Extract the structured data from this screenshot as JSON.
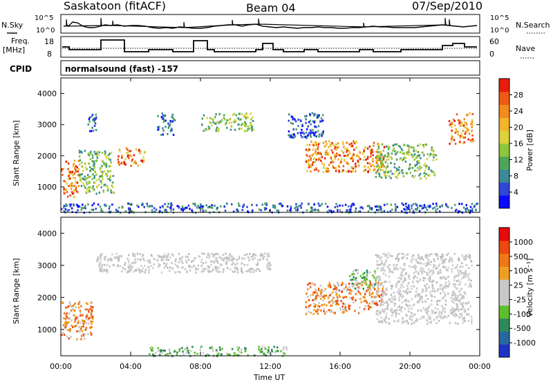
{
  "header": {
    "station": "Saskatoon (fitACF)",
    "beam": "Beam 04",
    "date": "07/Sep/2010"
  },
  "top_panels": {
    "nsky_label": "N.Sky",
    "nsky_ticks": [
      "10^5",
      "10^0"
    ],
    "nsearch_label": "N.Search",
    "nsearch_ticks": [
      "10^5",
      "10^0"
    ],
    "freq_label": "Freq.",
    "freq_unit": "[MHz]",
    "freq_ticks": [
      "18",
      "8"
    ],
    "nave_label": "Nave",
    "nave_ticks": [
      "60",
      "0"
    ],
    "cpid_label": "CPID",
    "cpid_value": "normalsound (fast) -157"
  },
  "chart_data": [
    {
      "type": "heatmap",
      "name": "power",
      "ylabel": "Slant Range [km]",
      "ylim": [
        180,
        4500
      ],
      "yticks": [
        "4000",
        "3000",
        "2000",
        "1000"
      ],
      "xlim": [
        "00:00",
        "24:00"
      ],
      "colorbar": {
        "label": "Power [dB]",
        "ticks": [
          "28",
          "24",
          "20",
          "16",
          "12",
          "8",
          "4"
        ],
        "colors": [
          "#0a0aff",
          "#2f47d6",
          "#3b8a96",
          "#4fa65a",
          "#8cc63c",
          "#dcd23c",
          "#f4b428",
          "#f28a1e",
          "#ee5a14",
          "#e61e0a"
        ]
      },
      "echo_regions": [
        {
          "t_start": 0.0,
          "t_end": 1.0,
          "range_start": 700,
          "range_end": 1900,
          "level": "high"
        },
        {
          "t_start": 1.0,
          "t_end": 3.0,
          "range_start": 800,
          "range_end": 2200,
          "level": "medium"
        },
        {
          "t_start": 1.5,
          "t_end": 2.0,
          "range_start": 2800,
          "range_end": 3400,
          "level": "low"
        },
        {
          "t_start": 3.2,
          "t_end": 4.8,
          "range_start": 1700,
          "range_end": 2300,
          "level": "high"
        },
        {
          "t_start": 5.5,
          "t_end": 6.5,
          "range_start": 2700,
          "range_end": 3400,
          "level": "low"
        },
        {
          "t_start": 8.0,
          "t_end": 11.0,
          "range_start": 2800,
          "range_end": 3400,
          "level": "medium"
        },
        {
          "t_start": 13.0,
          "t_end": 15.0,
          "range_start": 2600,
          "range_end": 3400,
          "level": "low"
        },
        {
          "t_start": 14.0,
          "t_end": 18.5,
          "range_start": 1500,
          "range_end": 2500,
          "level": "high"
        },
        {
          "t_start": 18.0,
          "t_end": 21.5,
          "range_start": 1300,
          "range_end": 2400,
          "level": "medium"
        },
        {
          "t_start": 22.2,
          "t_end": 23.6,
          "range_start": 2400,
          "range_end": 3400,
          "level": "high"
        },
        {
          "t_start": 0.0,
          "t_end": 24.0,
          "range_start": 200,
          "range_end": 500,
          "level": "low"
        }
      ]
    },
    {
      "type": "heatmap",
      "name": "velocity",
      "ylabel": "Slant Range [km]",
      "ylim": [
        180,
        4500
      ],
      "yticks": [
        "4000",
        "3000",
        "2000",
        "1000"
      ],
      "xlabel": "Time UT",
      "xticks": [
        "00:00",
        "04:00",
        "08:00",
        "12:00",
        "16:00",
        "20:00",
        "00:00"
      ],
      "colorbar": {
        "label": "Velocity [m s⁻¹]",
        "ticks": [
          "1000",
          "500",
          "100",
          "25",
          "-25",
          "-100",
          "-500",
          "-1000"
        ],
        "colors": [
          "#1e32c8",
          "#2868a0",
          "#2e8a5a",
          "#5cc02a",
          "#c8c8c8",
          "#c8c8c8",
          "#f0a01e",
          "#f07814",
          "#ec4810",
          "#e60a0a"
        ]
      },
      "echo_regions": [
        {
          "t_start": 0.0,
          "t_end": 1.8,
          "range_start": 700,
          "range_end": 1900,
          "level": "orange"
        },
        {
          "t_start": 2.0,
          "t_end": 12.0,
          "range_start": 2800,
          "range_end": 3400,
          "level": "gray"
        },
        {
          "t_start": 14.0,
          "t_end": 18.5,
          "range_start": 1500,
          "range_end": 2500,
          "level": "orange"
        },
        {
          "t_start": 16.5,
          "t_end": 18.0,
          "range_start": 2300,
          "range_end": 2900,
          "level": "green"
        },
        {
          "t_start": 18.0,
          "t_end": 23.5,
          "range_start": 1200,
          "range_end": 3400,
          "level": "gray"
        },
        {
          "t_start": 5.0,
          "t_end": 13.0,
          "range_start": 200,
          "range_end": 500,
          "level": "green"
        }
      ]
    }
  ]
}
